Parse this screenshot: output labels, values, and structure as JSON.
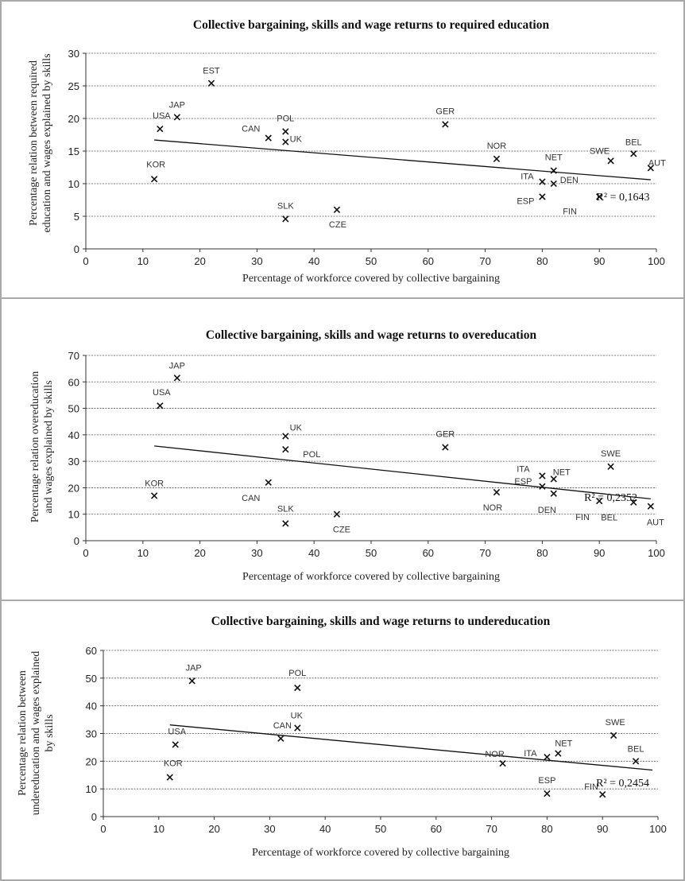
{
  "chart_data": [
    {
      "type": "scatter",
      "title": "Collective bargaining, skills  and wage returns to required education",
      "xlabel": "Percentage of workforce covered by collective bargaining",
      "ylabel_lines": [
        "Percentage relation between required",
        "education and wages explained by skills"
      ],
      "xlim": [
        0,
        100
      ],
      "ylim": [
        0,
        30
      ],
      "xticks": [
        0,
        10,
        20,
        30,
        40,
        50,
        60,
        70,
        80,
        90,
        100
      ],
      "yticks": [
        0,
        5,
        10,
        15,
        20,
        25,
        30
      ],
      "points": [
        {
          "label": "EST",
          "x": 22,
          "y": 25.4
        },
        {
          "label": "JAP",
          "x": 16,
          "y": 20.2
        },
        {
          "label": "USA",
          "x": 13,
          "y": 18.4
        },
        {
          "label": "KOR",
          "x": 12,
          "y": 10.7
        },
        {
          "label": "CAN",
          "x": 32,
          "y": 17.0
        },
        {
          "label": "POL",
          "x": 35,
          "y": 18.0
        },
        {
          "label": "UK",
          "x": 35,
          "y": 16.4
        },
        {
          "label": "SLK",
          "x": 35,
          "y": 4.6
        },
        {
          "label": "CZE",
          "x": 44,
          "y": 6.0
        },
        {
          "label": "GER",
          "x": 63,
          "y": 19.1
        },
        {
          "label": "NOR",
          "x": 72,
          "y": 13.8
        },
        {
          "label": "ITA",
          "x": 80,
          "y": 10.3
        },
        {
          "label": "ESP",
          "x": 80,
          "y": 8.0
        },
        {
          "label": "NET",
          "x": 82,
          "y": 12.0
        },
        {
          "label": "DEN",
          "x": 82,
          "y": 10.0
        },
        {
          "label": "FIN",
          "x": 90,
          "y": 8.0
        },
        {
          "label": "SWE",
          "x": 92,
          "y": 13.5
        },
        {
          "label": "BEL",
          "x": 96,
          "y": 14.6
        },
        {
          "label": "AUT",
          "x": 99,
          "y": 12.4
        }
      ],
      "trendline": {
        "x": [
          12,
          99
        ],
        "y": [
          16.7,
          10.6
        ]
      },
      "r_squared_label": "R² = 0,1643",
      "grid": true
    },
    {
      "type": "scatter",
      "title": "Collective bargaining, skills  and wage returns to overeducation",
      "xlabel": "Percentage of workforce covered by collective bargaining",
      "ylabel_lines": [
        "Percentage relation overeducation",
        "and wages explained by skills"
      ],
      "xlim": [
        0,
        100
      ],
      "ylim": [
        0,
        70
      ],
      "xticks": [
        0,
        10,
        20,
        30,
        40,
        50,
        60,
        70,
        80,
        90,
        100
      ],
      "yticks": [
        0,
        10,
        20,
        30,
        40,
        50,
        60,
        70
      ],
      "points": [
        {
          "label": "JAP",
          "x": 16,
          "y": 61.5
        },
        {
          "label": "USA",
          "x": 13,
          "y": 51.0
        },
        {
          "label": "KOR",
          "x": 12,
          "y": 17.0
        },
        {
          "label": "CAN",
          "x": 32,
          "y": 22.0
        },
        {
          "label": "UK",
          "x": 35,
          "y": 39.5
        },
        {
          "label": "POL",
          "x": 35,
          "y": 34.5
        },
        {
          "label": "SLK",
          "x": 35,
          "y": 6.5
        },
        {
          "label": "CZE",
          "x": 44,
          "y": 10.0
        },
        {
          "label": "GER",
          "x": 63,
          "y": 35.3
        },
        {
          "label": "NOR",
          "x": 72,
          "y": 18.3
        },
        {
          "label": "ITA",
          "x": 80,
          "y": 24.5
        },
        {
          "label": "ESP",
          "x": 80,
          "y": 20.5
        },
        {
          "label": "NET",
          "x": 82,
          "y": 23.3
        },
        {
          "label": "DEN",
          "x": 82,
          "y": 17.8
        },
        {
          "label": "FIN",
          "x": 90,
          "y": 15.0
        },
        {
          "label": "SWE",
          "x": 92,
          "y": 28.0
        },
        {
          "label": "BEL",
          "x": 96,
          "y": 14.5
        },
        {
          "label": "AUT",
          "x": 99,
          "y": 13.0
        }
      ],
      "trendline": {
        "x": [
          12,
          99
        ],
        "y": [
          35.8,
          15.8
        ]
      },
      "r_squared_label": "R² = 0,2352",
      "grid": true
    },
    {
      "type": "scatter",
      "title": "Collective bargaining, skills  and wage returns to undereducation",
      "xlabel": "Percentage of workforce covered by collective bargaining",
      "ylabel_lines": [
        "Percentage relation between",
        "undereducation and wages explained",
        "by skills"
      ],
      "xlim": [
        0,
        100
      ],
      "ylim": [
        0,
        60
      ],
      "xticks": [
        0,
        10,
        20,
        30,
        40,
        50,
        60,
        70,
        80,
        90,
        100
      ],
      "yticks": [
        0,
        10,
        20,
        30,
        40,
        50,
        60
      ],
      "points": [
        {
          "label": "JAP",
          "x": 16,
          "y": 49.0
        },
        {
          "label": "USA",
          "x": 13,
          "y": 26.0
        },
        {
          "label": "KOR",
          "x": 12,
          "y": 14.2
        },
        {
          "label": "POL",
          "x": 35,
          "y": 46.5
        },
        {
          "label": "UK",
          "x": 35,
          "y": 32.0
        },
        {
          "label": "CAN",
          "x": 32,
          "y": 28.2
        },
        {
          "label": "NOR",
          "x": 72,
          "y": 19.2
        },
        {
          "label": "ITA",
          "x": 80,
          "y": 21.5
        },
        {
          "label": "NET",
          "x": 82,
          "y": 22.8
        },
        {
          "label": "ESP",
          "x": 80,
          "y": 8.3
        },
        {
          "label": "FIN",
          "x": 90,
          "y": 8.0
        },
        {
          "label": "SWE",
          "x": 92,
          "y": 29.3
        },
        {
          "label": "BEL",
          "x": 96,
          "y": 20.0
        }
      ],
      "trendline": {
        "x": [
          12,
          99
        ],
        "y": [
          33.1,
          16.8
        ]
      },
      "r_squared_label": "R² = 0,2454",
      "grid": true
    }
  ]
}
